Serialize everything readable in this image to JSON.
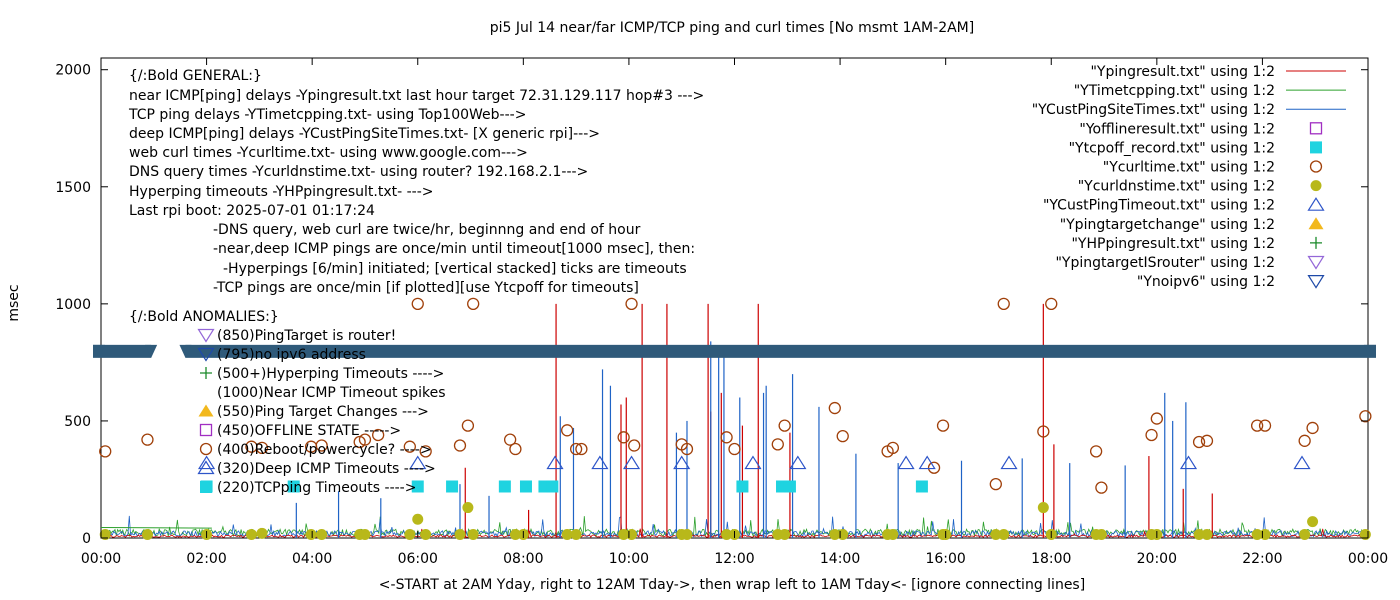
{
  "chart_data": {
    "type": "line",
    "title": "pi5 Jul 14  near/far ICMP/TCP ping and curl times [No msmt 1AM-2AM]",
    "xlabel": "<-START at 2AM Yday, right to 12AM Tday->, then wrap left to 1AM Tday<- [ignore connecting lines]",
    "ylabel": "msec",
    "xlim": [
      0,
      24
    ],
    "ylim": [
      0,
      2050
    ],
    "x_ticks": [
      "00:00",
      "02:00",
      "04:00",
      "06:00",
      "08:00",
      "10:00",
      "12:00",
      "14:00",
      "16:00",
      "18:00",
      "20:00",
      "22:00",
      "00:00"
    ],
    "y_ticks": [
      0,
      500,
      1000,
      1500,
      2000
    ],
    "grid": false,
    "legend_position": "top-right",
    "annotations": [
      "{/:Bold GENERAL:}",
      "near ICMP[ping] delays -Ypingresult.txt last hour target 72.31.129.117 hop#3 --->",
      "TCP ping delays -YTimetcpping.txt- using Top100Web--->",
      "deep ICMP[ping] delays -YCustPingSiteTimes.txt- [X generic rpi]--->",
      "web curl times -Ycurltime.txt- using www.google.com--->",
      "DNS query times -Ycurldnstime.txt- using router? 192.168.2.1--->",
      "Hyperping timeouts -YHPpingresult.txt- --->",
      "Last rpi boot: 2025-07-01 01:17:24",
      "-DNS query, web curl are twice/hr, beginnng and end of hour",
      "-near,deep ICMP pings are once/min until timeout[1000 msec], then:",
      "-Hyperpings [6/min] initiated; [vertical stacked] ticks are timeouts",
      "-TCP pings are once/min [if plotted][use Ytcpoff for timeouts]",
      "{/:Bold ANOMALIES:}"
    ],
    "anomaly_legend": [
      {
        "label": "(850)PingTarget is router!",
        "marker": "triangle-down-open",
        "color": "#9467d8"
      },
      {
        "label": "(795)no ipv6 address",
        "marker": "triangle-down-open",
        "color": "#1f4aa8"
      },
      {
        "label": "(500+)Hyperping Timeouts ---->",
        "marker": "plus",
        "color": "#1a8a2a"
      },
      {
        "label": "(1000)Near ICMP Timeout spikes",
        "marker": "none",
        "color": "#cc0000"
      },
      {
        "label": "(550)Ping Target Changes --->",
        "marker": "triangle-up-filled",
        "color": "#f2b81d"
      },
      {
        "label": "(450)OFFLINE STATE ----->",
        "marker": "square-open",
        "color": "#a12fc2"
      },
      {
        "label": "(400)Reboot/powercycle? ---->",
        "marker": "circle-open",
        "color": "#a0400a"
      },
      {
        "label": "(320)Deep ICMP Timeouts ---->",
        "marker": "triangle-up-open",
        "color": "#2e55c9"
      },
      {
        "label": "(220)TCPping Timeouts ---->",
        "marker": "square-filled",
        "color": "#1fd3e0"
      }
    ],
    "legend": [
      {
        "name": "\"Ypingresult.txt\" using 1:2",
        "marker": "line",
        "color": "#cc0000"
      },
      {
        "name": "\"YTimetcpping.txt\" using 1:2",
        "marker": "line",
        "color": "#2ca02c"
      },
      {
        "name": "\"YCustPingSiteTimes.txt\" using 1:2",
        "marker": "line",
        "color": "#1f63c6"
      },
      {
        "name": "\"Yofflineresult.txt\" using 1:2",
        "marker": "square-open",
        "color": "#a12fc2"
      },
      {
        "name": "\"Ytcpoff_record.txt\" using 1:2",
        "marker": "square-filled",
        "color": "#1fd3e0"
      },
      {
        "name": "\"Ycurltime.txt\" using 1:2",
        "marker": "circle-open",
        "color": "#a0400a"
      },
      {
        "name": "\"Ycurldnstime.txt\" using 1:2",
        "marker": "circle-filled",
        "color": "#b8b81a"
      },
      {
        "name": "\"YCustPingTimeout.txt\" using 1:2",
        "marker": "triangle-up-open",
        "color": "#2e55c9"
      },
      {
        "name": "\"Ypingtargetchange\" using 1:2",
        "marker": "triangle-up-filled",
        "color": "#f2b81d"
      },
      {
        "name": "\"YHPpingresult.txt\" using 1:2",
        "marker": "plus",
        "color": "#1a8a2a"
      },
      {
        "name": "\"YpingtargetISrouter\" using 1:2",
        "marker": "triangle-down-open",
        "color": "#9467d8"
      },
      {
        "name": "\"Ynoipv6\" using 1:2",
        "marker": "triangle-down-open",
        "color": "#1f4aa8"
      }
    ],
    "noipv6_band": {
      "y": 795,
      "gaps": [
        [
          0.95,
          1.6
        ]
      ],
      "color": "#2f5a7a"
    },
    "series": [
      {
        "name": "Ycurltime.txt",
        "marker": "circle-open",
        "color": "#a0400a",
        "x": [
          0.08,
          0.88,
          2.85,
          3.05,
          3.98,
          4.18,
          4.9,
          5.0,
          5.25,
          5.85,
          6.0,
          6.15,
          6.8,
          6.95,
          7.05,
          7.75,
          7.85,
          8.83,
          9.0,
          9.1,
          9.9,
          10.05,
          10.1,
          11.0,
          11.1,
          11.85,
          12.0,
          12.82,
          12.95,
          13.9,
          14.05,
          14.9,
          15.0,
          15.78,
          15.95,
          16.95,
          17.1,
          17.85,
          18.0,
          18.85,
          18.95,
          19.9,
          20.0,
          20.8,
          20.95,
          21.9,
          22.05,
          22.8,
          22.95,
          23.95
        ],
        "y": [
          370,
          420,
          390,
          385,
          390,
          395,
          410,
          420,
          440,
          390,
          1000,
          370,
          395,
          480,
          1000,
          420,
          380,
          460,
          380,
          380,
          430,
          1000,
          395,
          400,
          380,
          430,
          380,
          400,
          480,
          555,
          435,
          370,
          385,
          300,
          480,
          230,
          1000,
          455,
          1000,
          370,
          215,
          440,
          510,
          410,
          415,
          480,
          480,
          415,
          470,
          520
        ]
      },
      {
        "name": "Ycurldnstime.txt",
        "marker": "circle-filled",
        "color": "#b8b81a",
        "x": [
          0.08,
          0.88,
          2.0,
          2.85,
          3.05,
          3.98,
          4.18,
          4.9,
          5.0,
          5.85,
          6.0,
          6.15,
          6.8,
          6.95,
          7.05,
          7.85,
          8.0,
          8.83,
          9.0,
          9.9,
          10.05,
          11.0,
          11.1,
          11.85,
          12.0,
          12.82,
          12.95,
          13.9,
          14.05,
          14.9,
          15.0,
          15.95,
          16.0,
          16.95,
          17.1,
          17.85,
          18.0,
          18.85,
          18.95,
          19.9,
          20.0,
          20.8,
          20.95,
          21.9,
          22.05,
          22.8,
          22.95,
          23.95
        ],
        "y": [
          15,
          15,
          15,
          15,
          20,
          15,
          15,
          15,
          15,
          15,
          80,
          15,
          15,
          130,
          15,
          15,
          15,
          15,
          15,
          15,
          15,
          15,
          15,
          15,
          15,
          15,
          15,
          15,
          15,
          15,
          15,
          15,
          15,
          15,
          15,
          130,
          15,
          15,
          15,
          15,
          15,
          15,
          15,
          15,
          15,
          15,
          70,
          15
        ]
      },
      {
        "name": "YCustPingTimeout.txt",
        "marker": "triangle-up-open",
        "color": "#2e55c9",
        "x": [
          2.0,
          6.0,
          8.6,
          9.45,
          10.05,
          11.0,
          12.35,
          13.2,
          15.25,
          15.65,
          17.2,
          20.6,
          22.75
        ],
        "y": [
          320,
          320,
          320,
          320,
          320,
          320,
          320,
          320,
          320,
          320,
          320,
          320,
          320
        ]
      },
      {
        "name": "Ytcpoff_record.txt",
        "marker": "square-filled",
        "color": "#1fd3e0",
        "x": [
          2.0,
          3.65,
          6.0,
          6.65,
          7.65,
          8.05,
          8.4,
          8.55,
          12.15,
          12.9,
          13.05,
          15.55
        ],
        "y": [
          220,
          220,
          220,
          220,
          220,
          220,
          220,
          220,
          220,
          220,
          220,
          220
        ]
      },
      {
        "name": "Ypingresult.txt",
        "marker": "line",
        "color": "#cc0000",
        "x": [
          8.62,
          10.25,
          10.72,
          11.5,
          12.45,
          17.85,
          9.85,
          9.95,
          11.55,
          11.75,
          12.15,
          13.05,
          18.05,
          19.85,
          6.9,
          20.5,
          21.05,
          8.1
        ],
        "y": [
          1000,
          1000,
          1000,
          1000,
          1000,
          1000,
          570,
          600,
          540,
          620,
          480,
          450,
          400,
          350,
          300,
          210,
          190,
          120
        ]
      },
      {
        "name": "YCustPingSiteTimes.txt",
        "marker": "line",
        "color": "#1f63c6",
        "x": [
          11.55,
          11.7,
          11.8,
          9.5,
          9.65,
          8.7,
          8.95,
          10.9,
          11.1,
          12.1,
          12.55,
          12.6,
          13.1,
          13.6,
          14.3,
          15.1,
          16.3,
          17.45,
          18.35,
          19.4,
          20.15,
          20.3,
          20.55,
          3.7,
          4.5,
          5.3,
          6.8,
          7.35
        ],
        "y": [
          840,
          820,
          790,
          720,
          650,
          520,
          470,
          450,
          500,
          600,
          620,
          650,
          700,
          560,
          360,
          320,
          330,
          340,
          320,
          310,
          620,
          500,
          580,
          150,
          200,
          170,
          230,
          180
        ]
      }
    ]
  }
}
